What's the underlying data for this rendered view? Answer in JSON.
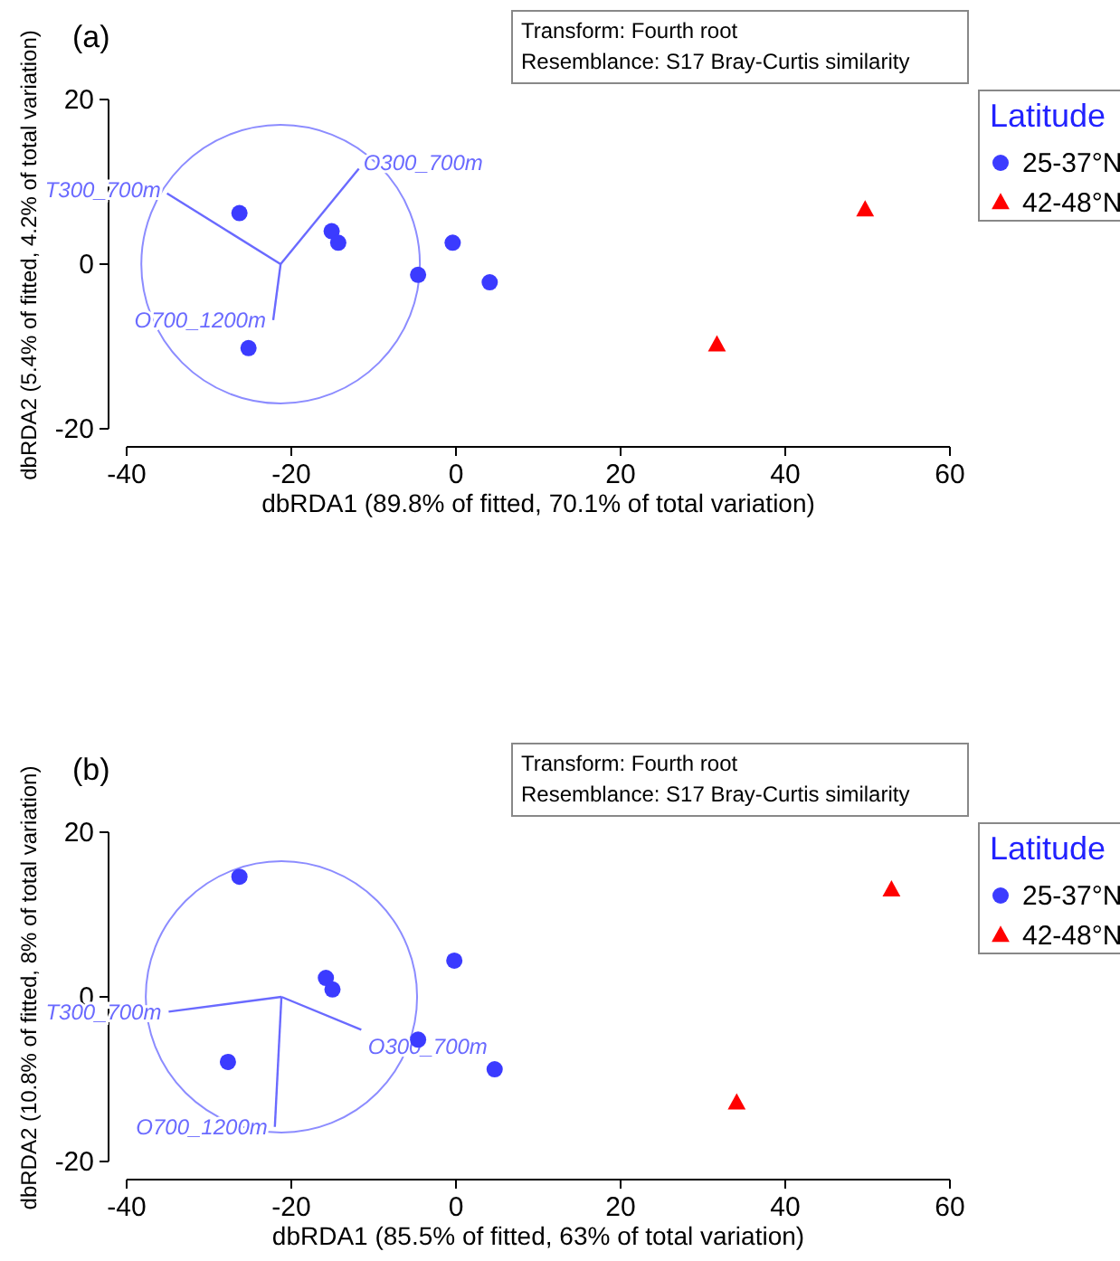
{
  "chart_data": [
    {
      "type": "scatter",
      "title": "(a)",
      "xlabel": "dbRDA1 (89.8% of fitted, 70.1% of total variation)",
      "ylabel": "dbRDA2 (5.4% of fitted, 4.2% of total variation)",
      "annotations": [
        "Transform: Fourth root",
        "Resemblance: S17 Bray-Curtis similarity"
      ],
      "legend_title": "Latitude",
      "legend": "right",
      "xlim": [
        -40,
        60
      ],
      "xticks": [
        -40,
        -20,
        0,
        20,
        40,
        60
      ],
      "ylim": [
        -20,
        20
      ],
      "yticks": [
        -20,
        0,
        20
      ],
      "grid": false,
      "series": [
        {
          "name": "25-37°N",
          "type": "scatter",
          "color": "#3b3bff",
          "marker": "circle",
          "x": [
            -26.3,
            -15.1,
            -14.3,
            -4.6,
            -0.4,
            4.1,
            -25.2
          ],
          "values": [
            6.2,
            4.0,
            2.6,
            -1.3,
            2.6,
            -2.2,
            -10.2
          ]
        },
        {
          "name": "42-48°N",
          "type": "scatter",
          "color": "#ff0000",
          "marker": "triangle",
          "x": [
            49.7,
            31.7
          ],
          "values": [
            6.6,
            -9.8
          ]
        },
        {
          "name": "T300_700m",
          "type": "line",
          "color": "#6a6aff",
          "x": [
            -21.3,
            -35.1
          ],
          "values": [
            0,
            8.6
          ]
        },
        {
          "name": "O300_700m",
          "type": "line",
          "color": "#6a6aff",
          "x": [
            -21.3,
            -11.8
          ],
          "values": [
            0,
            11.6
          ]
        },
        {
          "name": "O700_1200m",
          "type": "line",
          "color": "#6a6aff",
          "x": [
            -21.3,
            -22.2
          ],
          "values": [
            0,
            -6.8
          ]
        }
      ]
    },
    {
      "type": "scatter",
      "title": "(b)",
      "xlabel": "dbRDA1 (85.5% of fitted, 63% of total variation)",
      "ylabel": "dbRDA2 (10.8% of fitted, 8% of total variation)",
      "annotations": [
        "Transform: Fourth root",
        "Resemblance: S17 Bray-Curtis similarity"
      ],
      "legend_title": "Latitude",
      "legend": "right",
      "xlim": [
        -40,
        60
      ],
      "xticks": [
        -40,
        -20,
        0,
        20,
        40,
        60
      ],
      "ylim": [
        -20,
        20
      ],
      "yticks": [
        -20,
        0,
        20
      ],
      "grid": false,
      "series": [
        {
          "name": "25-37°N",
          "type": "scatter",
          "color": "#3b3bff",
          "marker": "circle",
          "x": [
            -26.3,
            -15.8,
            -15.0,
            -0.2,
            -4.6,
            4.7,
            -27.7
          ],
          "values": [
            14.6,
            2.3,
            0.9,
            4.4,
            -5.2,
            -8.8,
            -7.9
          ]
        },
        {
          "name": "42-48°N",
          "type": "scatter",
          "color": "#ff0000",
          "marker": "triangle",
          "x": [
            52.9,
            34.1
          ],
          "values": [
            13.0,
            -12.9
          ]
        },
        {
          "name": "T300_700m",
          "type": "line",
          "color": "#6a6aff",
          "x": [
            -21.2,
            -34.9
          ],
          "values": [
            0,
            -1.8
          ]
        },
        {
          "name": "O300_700m",
          "type": "line",
          "color": "#6a6aff",
          "x": [
            -21.2,
            -11.5
          ],
          "values": [
            0,
            -4.0
          ]
        },
        {
          "name": "O700_1200m",
          "type": "line",
          "color": "#6a6aff",
          "x": [
            -21.2,
            -22.0
          ],
          "values": [
            0,
            -15.8
          ]
        }
      ]
    }
  ]
}
